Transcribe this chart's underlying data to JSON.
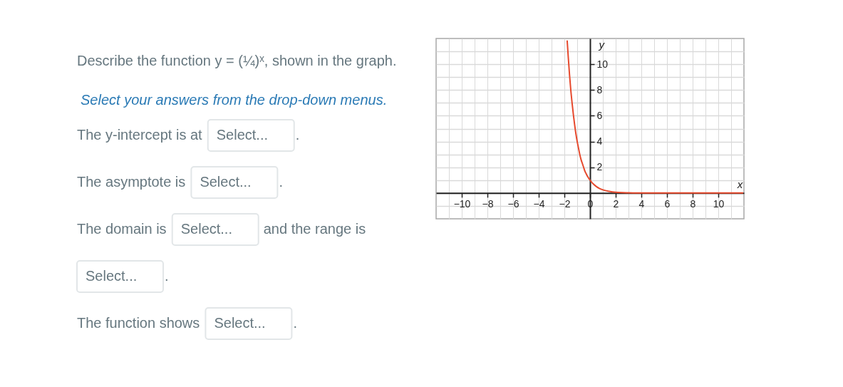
{
  "chart_data": [
    {
      "type": "other",
      "title": "Describe the function y = (¼)ˣ, shown in the graph.",
      "subtitle": "Select your answers from the drop-down menus.",
      "annotations": [
        "The y-intercept is at",
        "Select...",
        ".",
        "The asymptote is",
        "Select...",
        ".",
        "The domain is",
        "Select...",
        "and the range is",
        "Select...",
        ".",
        "The function shows",
        "Select...",
        "."
      ]
    },
    {
      "type": "line",
      "xlabel": "x",
      "ylabel": "y",
      "x": [
        -1.78,
        -1.7,
        -1.6,
        -1.5,
        -1.4,
        -1.3,
        -1.2,
        -1.1,
        -1,
        -0.9,
        -0.8,
        -0.7,
        -0.6,
        -0.5,
        -0.4,
        -0.3,
        -0.2,
        -0.1,
        0,
        0.25,
        0.5,
        0.75,
        1,
        1.5,
        2,
        2.5,
        3,
        4,
        6,
        8,
        10,
        11.9
      ],
      "series": [
        {
          "color": "#e64a2e",
          "values": [
            11.8,
            10.6,
            9.2,
            8,
            7,
            6.1,
            5.3,
            4.6,
            4,
            3.5,
            3,
            2.6,
            2.3,
            2,
            1.7,
            1.5,
            1.3,
            1.15,
            1,
            0.71,
            0.5,
            0.35,
            0.25,
            0.13,
            0.06,
            0.03,
            0.02,
            0,
            0,
            0,
            0,
            0
          ]
        }
      ],
      "xlim": [
        -12,
        12
      ],
      "ylim": [
        -2,
        12
      ],
      "xticks": [
        -10,
        -8,
        -6,
        -4,
        -2,
        0,
        2,
        4,
        6,
        8,
        10
      ],
      "yticks": [
        2,
        4,
        6,
        8,
        10
      ],
      "grid": true,
      "marker": "none",
      "line_style": "solid"
    }
  ]
}
